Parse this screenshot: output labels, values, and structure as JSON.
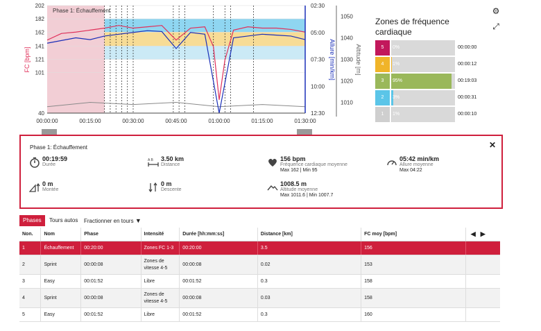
{
  "chart": {
    "phase_label": "Phase 1: Échauffement",
    "hr_ticks": [
      "202",
      "182",
      "162",
      "141",
      "121",
      "101",
      "40"
    ],
    "pace_ticks": [
      "02:30",
      "05:00",
      "07:30",
      "10:00",
      "12:30"
    ],
    "alt_ticks": [
      "1050",
      "1040",
      "1030",
      "1020",
      "1010"
    ],
    "time_ticks": [
      "00:00:00",
      "00:15:00",
      "00:30:00",
      "00:45:00",
      "01:00:00",
      "01:15:00",
      "01:30:00"
    ],
    "hr_axis_title": "FC [bpm]",
    "pace_axis_title": "Allure [min/km]",
    "alt_axis_title": "Altitude [m]",
    "colors": {
      "hr": "#e0305a",
      "pace": "#1a2fb8",
      "phase": "#e8a5b3",
      "altitude": "#8a8a8a"
    },
    "chart_data": {
      "type": "line",
      "x_unit": "hh:mm:ss",
      "xlim": [
        "00:00:00",
        "01:30:00"
      ],
      "series": [
        {
          "name": "FC [bpm]",
          "axis": "left",
          "ylim": [
            40,
            202
          ],
          "x": [
            "00:00:00",
            "00:05:00",
            "00:10:00",
            "00:15:00",
            "00:20:00",
            "00:25:00",
            "00:30:00",
            "00:35:00",
            "00:40:00",
            "00:45:00",
            "00:50:00",
            "00:55:00",
            "00:58:00",
            "01:00:00",
            "01:02:00",
            "01:05:00",
            "01:10:00",
            "01:15:00",
            "01:20:00",
            "01:25:00",
            "01:30:00"
          ],
          "y": [
            150,
            160,
            162,
            165,
            168,
            172,
            168,
            170,
            172,
            150,
            168,
            170,
            140,
            60,
            120,
            165,
            170,
            168,
            168,
            166,
            162
          ]
        },
        {
          "name": "Allure [min/km]",
          "axis": "right",
          "ylim": [
            "02:30",
            "12:30"
          ],
          "x": [
            "00:00:00",
            "00:05:00",
            "00:10:00",
            "00:15:00",
            "00:20:00",
            "00:25:00",
            "00:30:00",
            "00:35:00",
            "00:40:00",
            "00:45:00",
            "00:50:00",
            "00:55:00",
            "01:00:00",
            "01:05:00",
            "01:10:00",
            "01:15:00",
            "01:20:00",
            "01:25:00",
            "01:30:00"
          ],
          "y": [
            "06:00",
            "05:45",
            "05:30",
            "05:40",
            "05:20",
            "05:10",
            "05:00",
            "04:50",
            "04:55",
            "06:30",
            "05:00",
            "05:10",
            "12:30",
            "05:30",
            "05:20",
            "05:10",
            "05:15",
            "05:20",
            "05:40"
          ]
        },
        {
          "name": "Altitude [m]",
          "axis": "far-right",
          "ylim": [
            1005,
            1055
          ],
          "x": [
            "00:00:00",
            "00:15:00",
            "00:30:00",
            "00:45:00",
            "01:00:00",
            "01:15:00",
            "01:30:00"
          ],
          "y": [
            1008,
            1010,
            1009,
            1010,
            1008,
            1009,
            1008
          ]
        }
      ],
      "hr_zone_bands": [
        {
          "zone": "4",
          "from": 162,
          "to": 182,
          "color": "#33b5e5"
        },
        {
          "zone": "3",
          "from": 141,
          "to": 162,
          "color": "#f0c040"
        },
        {
          "zone": "2",
          "from": 121,
          "to": 141,
          "color": "#a0d8ef"
        }
      ],
      "grid": true
    }
  },
  "zones": {
    "title": "Zones de fréquence cardiaque",
    "rows": [
      {
        "num": "5",
        "pct": "0%",
        "time": "00:00:00",
        "color": "#c2185b",
        "frac": 0.0
      },
      {
        "num": "4",
        "pct": "1%",
        "time": "00:00:12",
        "color": "#f0b429",
        "frac": 0.01
      },
      {
        "num": "3",
        "pct": "95%",
        "time": "00:19:03",
        "color": "#9ab85a",
        "frac": 0.95
      },
      {
        "num": "2",
        "pct": "3%",
        "time": "00:00:31",
        "color": "#5bc5e8",
        "frac": 0.03
      },
      {
        "num": "1",
        "pct": "1%",
        "time": "00:00:10",
        "color": "#cfcfcf",
        "frac": 0.01
      }
    ]
  },
  "summary": {
    "title": "Phase 1: Échauffement",
    "duration": {
      "value": "00:19:59",
      "label": "Durée"
    },
    "distance": {
      "value": "3.50 km",
      "label": "Distance"
    },
    "hr": {
      "value": "156 bpm",
      "label": "Fréquence cardiaque moyenne",
      "sub": "Max 162  |  Min 95"
    },
    "pace": {
      "value": "05:42 min/km",
      "label": "Allure moyenne",
      "sub": "Max 04:22"
    },
    "ascent": {
      "value": "0 m",
      "label": "Montée"
    },
    "descent": {
      "value": "0 m",
      "label": "Descente"
    },
    "altitude": {
      "value": "1008.5 m",
      "label": "Altitude moyenne",
      "sub": "Max 1011.6  |  Min 1007.7"
    }
  },
  "tabs": {
    "phases": "Phases",
    "laps": "Tours autos",
    "split": "Fractionner en tours"
  },
  "table": {
    "headers": [
      "Non.",
      "Nom",
      "Phase",
      "Intensité",
      "Durée [hh:mm:ss]",
      "Distance [km]",
      "FC moy [bpm]"
    ],
    "rows": [
      [
        "1",
        "Échauffement",
        "00:20:00",
        "Zones FC 1-3",
        "00:20:00",
        "3.5",
        "156"
      ],
      [
        "2",
        "Sprint",
        "00:00:08",
        "Zones de vitesse 4-5",
        "00:00:08",
        "0.02",
        "153"
      ],
      [
        "3",
        "Easy",
        "00:01:52",
        "Libre",
        "00:01:52",
        "0.3",
        "158"
      ],
      [
        "4",
        "Sprint",
        "00:00:08",
        "Zones de vitesse 4-5",
        "00:00:08",
        "0.03",
        "158"
      ],
      [
        "5",
        "Easy",
        "00:01:52",
        "Libre",
        "00:01:52",
        "0.3",
        "160"
      ]
    ]
  }
}
